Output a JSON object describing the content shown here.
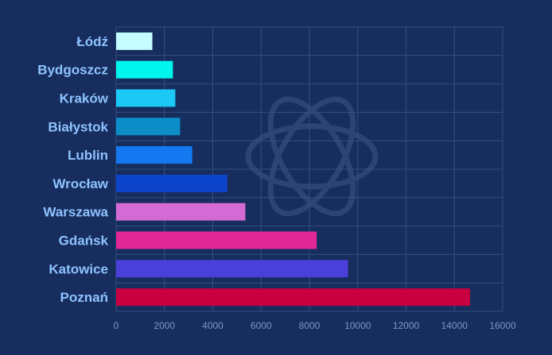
{
  "chart_data": {
    "type": "bar",
    "orientation": "horizontal",
    "categories": [
      "Łódź",
      "Bydgoszcz",
      "Kraków",
      "Białystok",
      "Lublin",
      "Wrocław",
      "Warszawa",
      "Gdańsk",
      "Katowice",
      "Poznań"
    ],
    "values": [
      1500,
      2350,
      2450,
      2650,
      3150,
      4600,
      5350,
      8300,
      9600,
      14650
    ],
    "colors": [
      "#c5fcff",
      "#00f5ed",
      "#1cc8f5",
      "#0c8ec8",
      "#1479f0",
      "#0c44cc",
      "#d46bd4",
      "#e22896",
      "#4b3fd9",
      "#c8003f"
    ],
    "xlim": [
      0,
      16000
    ],
    "xticks": [
      0,
      2000,
      4000,
      6000,
      8000,
      10000,
      12000,
      14000,
      16000
    ],
    "grid": true,
    "title": "",
    "xlabel": "",
    "ylabel": "",
    "background_color": "#162d5e",
    "watermark_icon": "atom-logo-icon"
  }
}
